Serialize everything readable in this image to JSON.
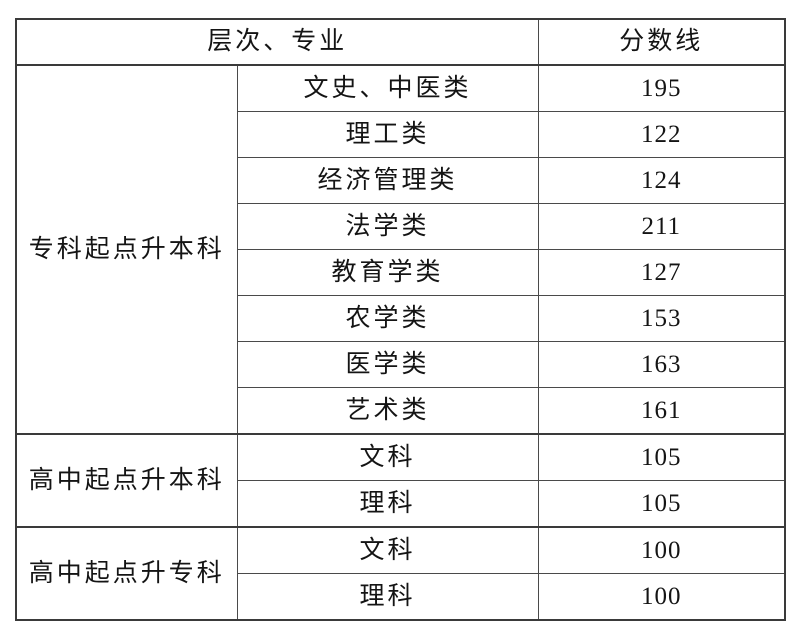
{
  "table": {
    "header": {
      "level_major": "层次、专业",
      "score": "分数线"
    },
    "sections": [
      {
        "level": "专科起点升本科",
        "rows": [
          {
            "major": "文史、中医类",
            "score": "195"
          },
          {
            "major": "理工类",
            "score": "122"
          },
          {
            "major": "经济管理类",
            "score": "124"
          },
          {
            "major": "法学类",
            "score": "211"
          },
          {
            "major": "教育学类",
            "score": "127"
          },
          {
            "major": "农学类",
            "score": "153"
          },
          {
            "major": "医学类",
            "score": "163"
          },
          {
            "major": "艺术类",
            "score": "161"
          }
        ]
      },
      {
        "level": "高中起点升本科",
        "rows": [
          {
            "major": "文科",
            "score": "105"
          },
          {
            "major": "理科",
            "score": "105"
          }
        ]
      },
      {
        "level": "高中起点升专科",
        "rows": [
          {
            "major": "文科",
            "score": "100"
          },
          {
            "major": "理科",
            "score": "100"
          }
        ]
      }
    ]
  }
}
